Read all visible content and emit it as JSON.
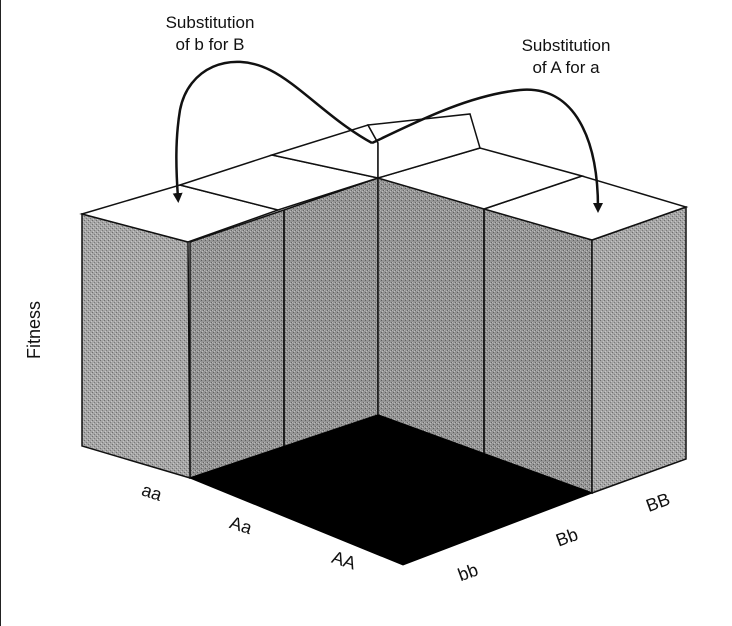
{
  "annotations": {
    "left_line1": "Substitution",
    "left_line2": "of b for B",
    "right_line1": "Substitution",
    "right_line2": "of A for a"
  },
  "axis": {
    "y_label": "Fitness",
    "a_locus": [
      "aa",
      "Aa",
      "AA"
    ],
    "b_locus": [
      "bb",
      "Bb",
      "BB"
    ]
  },
  "colors": {
    "side": "#a8a8a8",
    "top": "#ffffff",
    "floor": "#000000",
    "edge": "#111111"
  }
}
